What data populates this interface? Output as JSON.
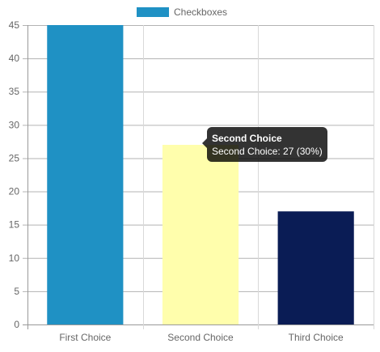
{
  "chart_data": {
    "type": "bar",
    "title": "",
    "xlabel": "",
    "ylabel": "",
    "categories": [
      "First Choice",
      "Second Choice",
      "Third Choice"
    ],
    "series": [
      {
        "name": "Checkboxes",
        "values": [
          45,
          27,
          17
        ],
        "colors": [
          "#1f91c4",
          "#fffeac",
          "#0a1c55"
        ]
      }
    ],
    "ylim": [
      0,
      45
    ],
    "yticks": [
      0,
      5,
      10,
      15,
      20,
      25,
      30,
      35,
      40,
      45
    ],
    "grid": true,
    "legend": {
      "label": "Checkboxes",
      "color": "#1f91c4",
      "placement": "top-center"
    },
    "tooltip": {
      "title": "Second Choice",
      "body": "Second Choice: 27 (30%)",
      "category_index": 1
    }
  }
}
